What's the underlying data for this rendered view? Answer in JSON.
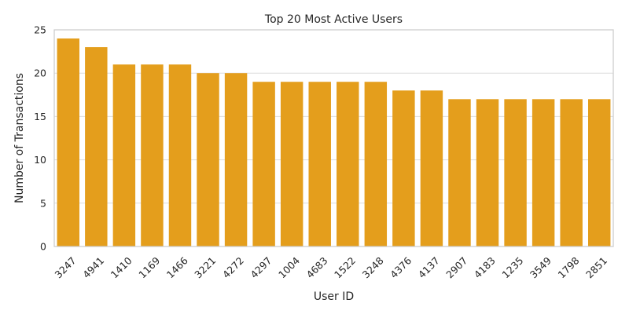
{
  "chart_data": {
    "type": "bar",
    "title": "Top 20 Most Active Users",
    "xlabel": "User ID",
    "ylabel": "Number of Transactions",
    "categories": [
      "3247",
      "4941",
      "1410",
      "1169",
      "1466",
      "3221",
      "4272",
      "4297",
      "1004",
      "4683",
      "1522",
      "3248",
      "4376",
      "4137",
      "2907",
      "4183",
      "1235",
      "3549",
      "1798",
      "2851"
    ],
    "values": [
      24,
      23,
      21,
      21,
      21,
      20,
      20,
      19,
      19,
      19,
      19,
      19,
      18,
      18,
      17,
      17,
      17,
      17,
      17,
      17
    ],
    "ylim": [
      0,
      25
    ],
    "yticks": [
      "0",
      "5",
      "10",
      "15",
      "20",
      "25"
    ],
    "grid": true,
    "bar_color": "#FF9F00",
    "bar_fill": "#E49E1C"
  }
}
